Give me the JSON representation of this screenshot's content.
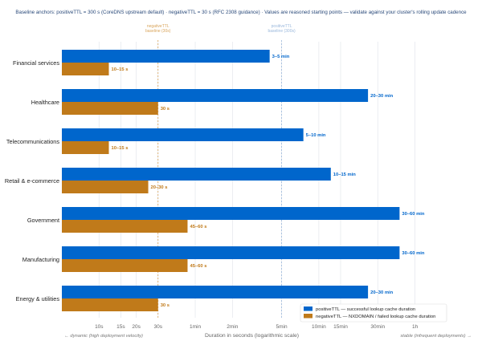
{
  "subtitle": "Baseline anchors:  positiveTTL = 300 s (CoreDNS upstream default)  ·  negativeTTL = 30 s (RFC 2308 guidance)  ·  Values are reasoned starting points — validate against your cluster's rolling update cadence",
  "colors": {
    "positive": "#0066cc",
    "negative": "#c07a1a",
    "grid": "#e6e9ee",
    "baseline_neg": "#d9a45a",
    "baseline_pos": "#9ab8dc"
  },
  "chart_data": {
    "type": "bar",
    "orientation": "horizontal",
    "xscale": "log",
    "xlim": [
      5,
      10800
    ],
    "xlabel": "Duration in seconds (logarithmic scale)",
    "grid": true,
    "legend_position": "bottom-right",
    "categories": [
      "Financial services",
      "Healthcare",
      "Telecommunications",
      "Retail & e-commerce",
      "Government",
      "Manufacturing",
      "Energy & utilities"
    ],
    "series": [
      {
        "name": "positiveTTL — successful lookup cache duration",
        "values": [
          240,
          1500,
          450,
          750,
          2700,
          2700,
          1500
        ],
        "labels": [
          "3–5 min",
          "20–30 min",
          "5–10 min",
          "10–15 min",
          "30–60 min",
          "30–60 min",
          "20–30 min"
        ]
      },
      {
        "name": "negativeTTL — NXDOMAIN / failed lookup cache duration",
        "values": [
          12,
          30,
          12,
          25,
          52,
          52,
          30
        ],
        "labels": [
          "10–15 s",
          "30 s",
          "10–15 s",
          "20–30 s",
          "45–60 s",
          "45–60 s",
          "30 s"
        ]
      }
    ],
    "ticks": [
      {
        "value": 10,
        "label": "10s"
      },
      {
        "value": 15,
        "label": "15s"
      },
      {
        "value": 20,
        "label": "20s"
      },
      {
        "value": 30,
        "label": "30s"
      },
      {
        "value": 60,
        "label": "1min"
      },
      {
        "value": 120,
        "label": "2min"
      },
      {
        "value": 300,
        "label": "5min"
      },
      {
        "value": 600,
        "label": "10min"
      },
      {
        "value": 900,
        "label": "15min"
      },
      {
        "value": 1800,
        "label": "30min"
      },
      {
        "value": 3600,
        "label": "1h"
      }
    ],
    "reference_lines": [
      {
        "value": 30,
        "label_line1": "negativeTTL",
        "label_line2": "baseline (30s)",
        "series": "negative"
      },
      {
        "value": 300,
        "label_line1": "positiveTTL",
        "label_line2": "baseline (300s)",
        "series": "positive"
      }
    ],
    "annotations": {
      "left": "← dynamic (high deployment velocity)",
      "right": "stable (infrequent deployments) →"
    }
  }
}
